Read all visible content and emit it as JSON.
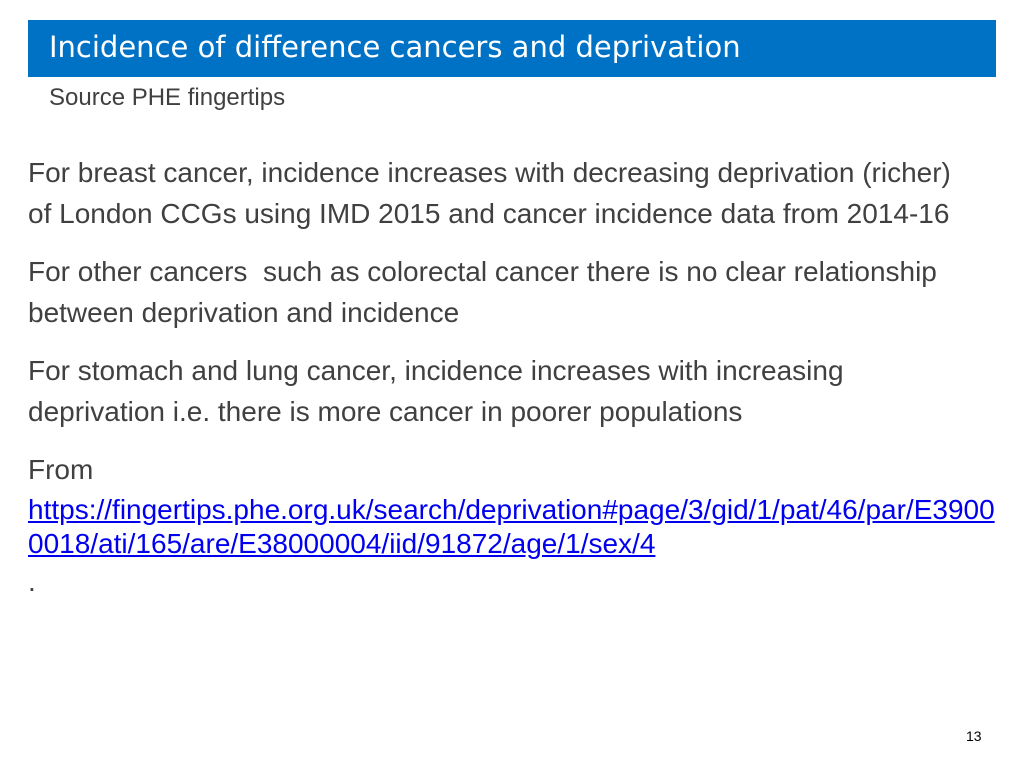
{
  "header": {
    "title": "Incidence of difference cancers and deprivation",
    "subtitle": "Source PHE fingertips"
  },
  "body": {
    "paragraphs": [
      "For breast cancer, incidence increases with decreasing deprivation (richer) of London CCGs using IMD 2015 and cancer incidence data from 2014-16",
      "For other cancers  such as colorectal cancer there is no clear relationship between deprivation and incidence",
      "For stomach and lung cancer, incidence increases with increasing deprivation i.e. there is more cancer in poorer populations"
    ],
    "source_prefix": "From",
    "link": "https://fingertips.phe.org.uk/search/deprivation#page/3/gid/1/pat/46/par/E39000018/ati/165/are/E38000004/iid/91872/age/1/sex/4",
    "suffix": "."
  },
  "footer": {
    "page_number": "13"
  }
}
